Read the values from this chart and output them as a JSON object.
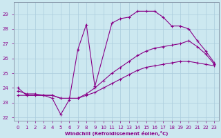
{
  "background_color": "#cce8f0",
  "grid_color": "#aaccdd",
  "line_color": "#880088",
  "xlabel": "Windchill (Refroidissement éolien,°C)",
  "xlim_min": -0.5,
  "xlim_max": 23.5,
  "ylim_min": 21.8,
  "ylim_max": 29.8,
  "yticks": [
    22,
    23,
    24,
    25,
    26,
    27,
    28,
    29
  ],
  "xticks": [
    0,
    1,
    2,
    3,
    4,
    5,
    6,
    7,
    8,
    9,
    10,
    11,
    12,
    13,
    14,
    15,
    16,
    17,
    18,
    19,
    20,
    21,
    22,
    23
  ],
  "line1_x": [
    0,
    1,
    3,
    4,
    5,
    6,
    7,
    8,
    9,
    11,
    12,
    13,
    14,
    15,
    16,
    17,
    18,
    19,
    20,
    21,
    22,
    23
  ],
  "line1_y": [
    24.0,
    23.5,
    23.5,
    23.3,
    22.2,
    23.2,
    26.6,
    28.3,
    24.1,
    28.4,
    28.7,
    28.8,
    29.2,
    29.2,
    29.2,
    28.8,
    28.2,
    28.2,
    28.0,
    27.2,
    26.5,
    25.7
  ],
  "line2_x": [
    0,
    1,
    2,
    3,
    4,
    5,
    6,
    7,
    8,
    9,
    10,
    11,
    12,
    13,
    14,
    15,
    16,
    17,
    18,
    19,
    20,
    21,
    22,
    23
  ],
  "line2_y": [
    23.5,
    23.5,
    23.5,
    23.5,
    23.5,
    23.3,
    23.3,
    23.3,
    23.5,
    23.7,
    24.0,
    24.3,
    24.6,
    24.9,
    25.2,
    25.4,
    25.5,
    25.6,
    25.7,
    25.8,
    25.8,
    25.7,
    25.6,
    25.5
  ],
  "line3_x": [
    0,
    1,
    2,
    3,
    4,
    5,
    6,
    7,
    8,
    9,
    10,
    11,
    12,
    13,
    14,
    15,
    16,
    17,
    18,
    19,
    20,
    21,
    22,
    23
  ],
  "line3_y": [
    23.8,
    23.6,
    23.6,
    23.5,
    23.5,
    23.3,
    23.3,
    23.3,
    23.6,
    24.0,
    24.5,
    25.0,
    25.4,
    25.8,
    26.2,
    26.5,
    26.7,
    26.8,
    26.9,
    27.0,
    27.2,
    26.8,
    26.3,
    25.6
  ]
}
